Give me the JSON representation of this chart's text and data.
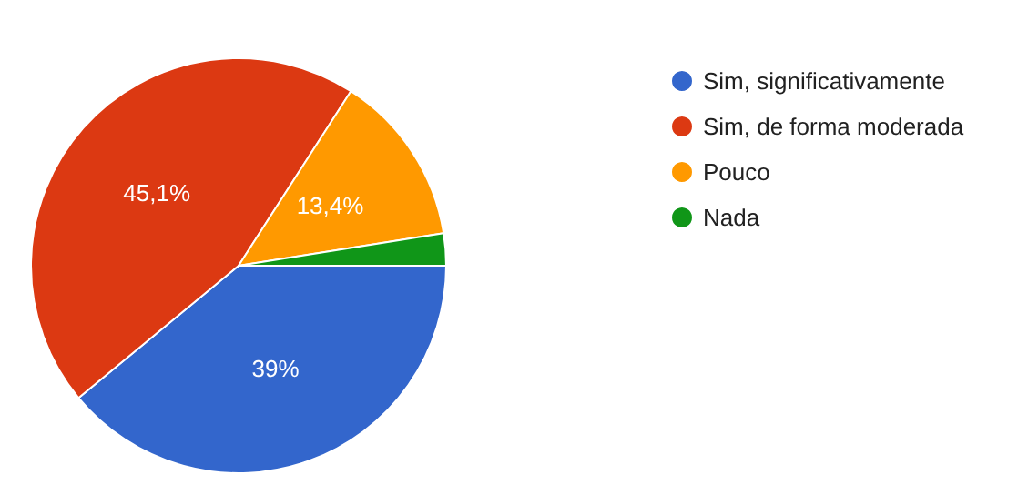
{
  "chart_data": {
    "type": "pie",
    "categories": [
      "Sim, significativamente",
      "Sim, de forma moderada",
      "Pouco",
      "Nada"
    ],
    "values": [
      39,
      45.1,
      13.4,
      2.5
    ],
    "colors": [
      "#3366cc",
      "#dc3912",
      "#ff9900",
      "#109618"
    ],
    "value_labels": [
      "39%",
      "45,1%",
      "13,4%",
      null
    ],
    "legend": "right"
  }
}
